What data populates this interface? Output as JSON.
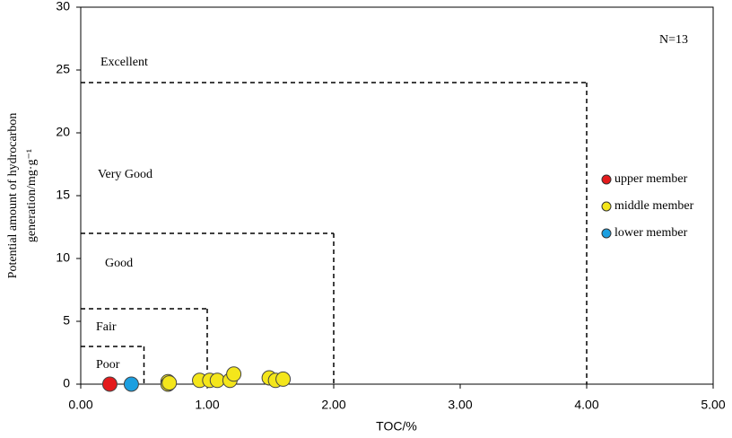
{
  "chart_data": {
    "type": "scatter",
    "xlabel": "TOC/%",
    "ylabel": [
      "Potential amount of hydrocarbon",
      "generation/mg·g⁻¹"
    ],
    "annotation": "N=13",
    "xlim": [
      0,
      5
    ],
    "ylim": [
      0,
      30
    ],
    "xticks": [
      {
        "value": 0,
        "label": "0.00"
      },
      {
        "value": 1,
        "label": "1.00"
      },
      {
        "value": 2,
        "label": "2.00"
      },
      {
        "value": 3,
        "label": "3.00"
      },
      {
        "value": 4,
        "label": "4.00"
      },
      {
        "value": 5,
        "label": "5.00"
      }
    ],
    "yticks": [
      0,
      5,
      10,
      15,
      20,
      25,
      30
    ],
    "legend": "right",
    "classes": [
      {
        "label": "Poor",
        "toc_max": 0.5,
        "s_max": 3
      },
      {
        "label": "Fair",
        "toc_max": 1,
        "s_max": 6
      },
      {
        "label": "Good",
        "toc_max": 2,
        "s_max": 12
      },
      {
        "label": "Very Good",
        "toc_max": 4,
        "s_max": 24
      },
      {
        "label": "Excellent"
      }
    ],
    "series": [
      {
        "name": "upper member",
        "color": "#e41a1c",
        "x": [
          0.23
        ],
        "values": [
          0
        ]
      },
      {
        "name": "middle member",
        "color": "#f4e61b",
        "x": [
          0.69,
          0.69,
          0.94,
          1.02,
          1.08,
          1.18,
          1.21,
          1.49,
          1.54,
          1.6,
          0.7
        ],
        "values": [
          0.2,
          0,
          0.3,
          0.3,
          0.3,
          0.3,
          0.8,
          0.5,
          0.3,
          0.4,
          0.1
        ]
      },
      {
        "name": "lower member",
        "color": "#1c9fe0",
        "x": [
          0.4
        ],
        "values": [
          0
        ]
      }
    ]
  }
}
